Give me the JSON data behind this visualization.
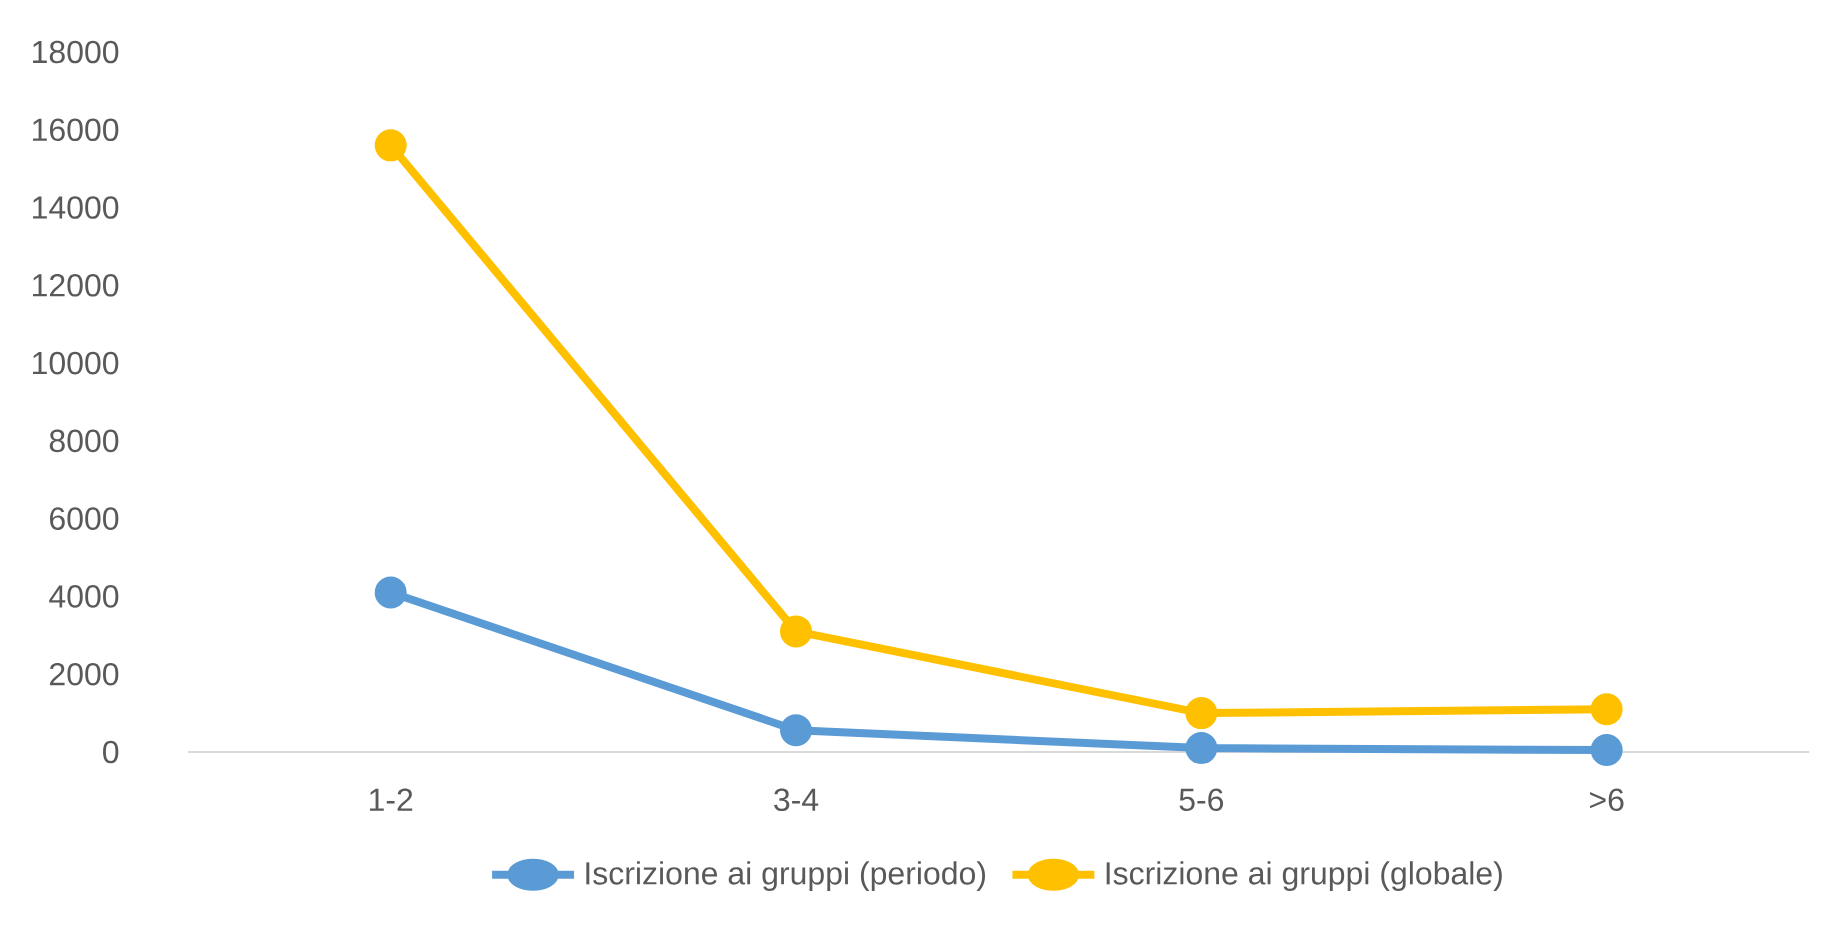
{
  "chart_data": {
    "type": "line",
    "categories": [
      "1-2",
      "3-4",
      "5-6",
      ">6"
    ],
    "series": [
      {
        "name": "Iscrizione ai gruppi (periodo)",
        "color": "#5b9bd5",
        "values": [
          4100,
          560,
          100,
          50
        ]
      },
      {
        "name": "Iscrizione ai gruppi (globale)",
        "color": "#ffc000",
        "values": [
          15600,
          3100,
          1000,
          1100
        ]
      }
    ],
    "ylim": [
      0,
      18000
    ],
    "yticks": [
      0,
      2000,
      4000,
      6000,
      8000,
      10000,
      12000,
      14000,
      16000,
      18000
    ],
    "grid": false,
    "legend": "bottom",
    "marker": "circle",
    "line_style": "solid"
  }
}
